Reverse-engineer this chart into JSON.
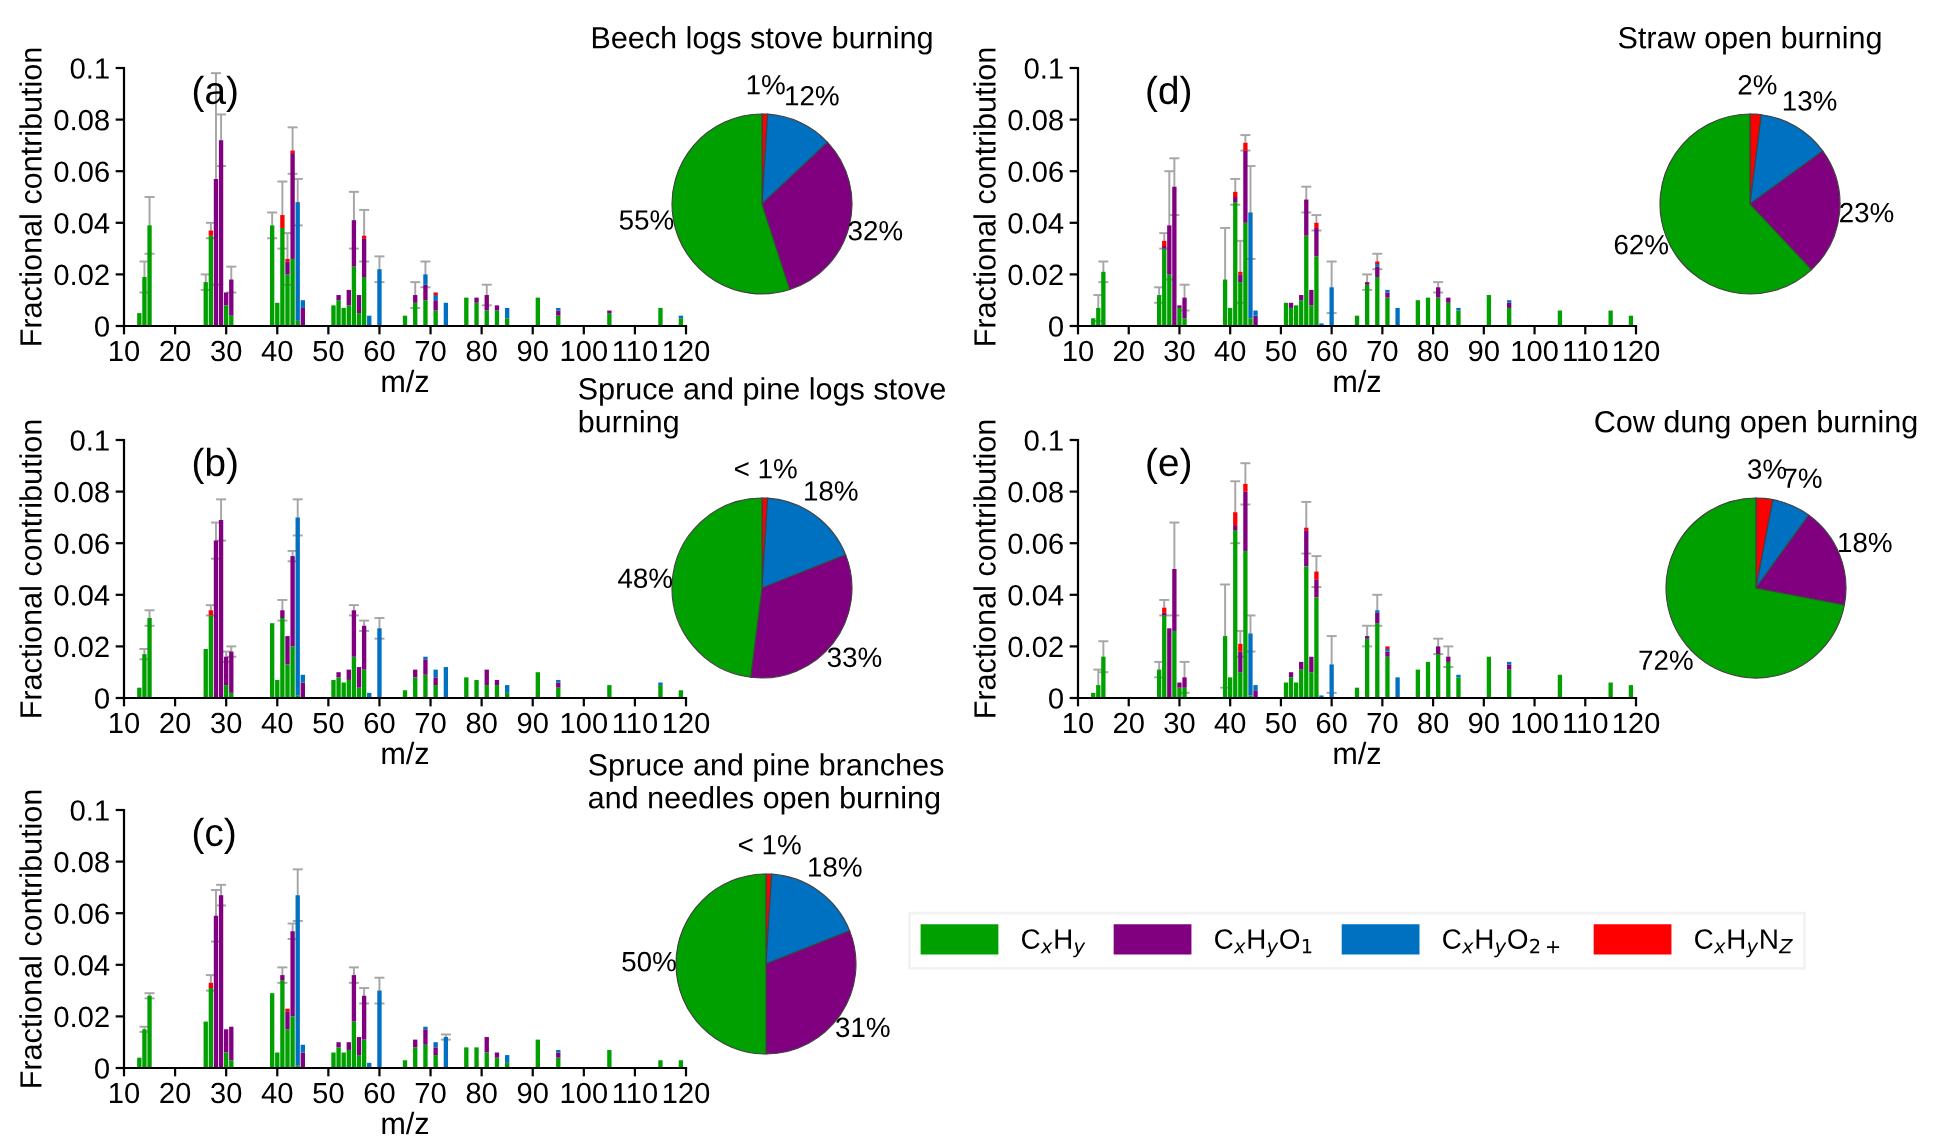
{
  "chart_data": [
    {
      "type": "bar",
      "stacked": true,
      "annotations": [
        "(a)"
      ],
      "xlabel": "m/z",
      "ylabel": "Fractional contribution",
      "xlim": [
        10,
        120
      ],
      "xticks": [
        10,
        20,
        30,
        40,
        50,
        60,
        70,
        80,
        90,
        100,
        110,
        120
      ],
      "ylim": [
        0,
        0.1
      ],
      "yticks": [
        0,
        0.02,
        0.04,
        0.06,
        0.08,
        0.1
      ],
      "x": [
        13,
        14,
        15,
        26,
        27,
        28,
        29,
        30,
        31,
        39,
        40,
        41,
        42,
        43,
        44,
        45,
        51,
        52,
        53,
        54,
        55,
        56,
        57,
        58,
        60,
        65,
        67,
        69,
        71,
        73,
        77,
        79,
        81,
        83,
        85,
        91,
        95,
        105,
        115,
        119
      ],
      "series": [
        {
          "color": "#00a000",
          "values": [
            0.005,
            0.019,
            0.039,
            0.017,
            0.035,
            0,
            0,
            0.008,
            0.004,
            0.039,
            0.009,
            0.038,
            0.02,
            0.026,
            0.002,
            0,
            0.008,
            0.01,
            0.007,
            0.008,
            0.023,
            0.005,
            0.019,
            0,
            0,
            0.004,
            0.009,
            0.01,
            0.006,
            0,
            0.011,
            0.009,
            0.006,
            0.006,
            0.003,
            0.011,
            0.004,
            0.005,
            0.007,
            0.003
          ]
        },
        {
          "color": "#800080",
          "values": [
            0,
            0,
            0,
            0,
            0,
            0.057,
            0.072,
            0.005,
            0.014,
            0,
            0,
            0,
            0.005,
            0.041,
            0,
            0.007,
            0,
            0.002,
            0,
            0.006,
            0.018,
            0.007,
            0.015,
            0,
            0,
            0,
            0.003,
            0.006,
            0.004,
            0,
            0,
            0.002,
            0.006,
            0.002,
            0,
            0,
            0.002,
            0.001,
            0,
            0
          ]
        },
        {
          "color": "#0070c0",
          "values": [
            0,
            0,
            0,
            0,
            0,
            0,
            0,
            0,
            0,
            0,
            0,
            0,
            0,
            0,
            0.046,
            0.003,
            0,
            0,
            0,
            0,
            0,
            0,
            0,
            0.004,
            0.022,
            0,
            0,
            0.004,
            0.002,
            0.009,
            0,
            0,
            0,
            0,
            0.004,
            0,
            0.001,
            0,
            0,
            0.001
          ]
        },
        {
          "color": "#ff0000",
          "values": [
            0,
            0,
            0,
            0,
            0.002,
            0,
            0,
            0,
            0,
            0,
            0,
            0.005,
            0.001,
            0.001,
            0,
            0,
            0,
            0,
            0,
            0,
            0,
            0,
            0.001,
            0,
            0,
            0,
            0,
            0,
            0.001,
            0,
            0,
            0,
            0,
            0,
            0,
            0,
            0,
            0,
            0,
            0
          ],
          "errors": [
            null,
            0.006,
            0.011,
            0.003,
            0.003,
            0.041,
            0.01,
            null,
            0.005,
            0.005,
            null,
            0.013,
            0.01,
            0.009,
            0.009,
            null,
            null,
            null,
            null,
            null,
            0.011,
            null,
            0.01,
            null,
            0.005,
            null,
            0.005,
            0.005,
            null,
            null,
            null,
            null,
            0.004,
            null,
            null,
            null,
            null,
            null,
            null,
            null
          ]
        }
      ]
    },
    {
      "type": "pie",
      "title": "Beech logs stove burning",
      "categories": [
        null,
        null,
        null,
        null
      ],
      "values": [
        1,
        12,
        32,
        55
      ],
      "colors": [
        "#ff0000",
        "#0070c0",
        "#800080",
        "#00a000"
      ],
      "value_labels": [
        "1%",
        "12%",
        "32%",
        "55%"
      ]
    },
    {
      "type": "bar",
      "stacked": true,
      "annotations": [
        "(d)"
      ],
      "xlabel": "m/z",
      "ylabel": "Fractional contribution",
      "xlim": [
        10,
        120
      ],
      "xticks": [
        10,
        20,
        30,
        40,
        50,
        60,
        70,
        80,
        90,
        100,
        110,
        120
      ],
      "ylim": [
        0,
        0.1
      ],
      "yticks": [
        0,
        0.02,
        0.04,
        0.06,
        0.08,
        0.1
      ],
      "x": [
        13,
        14,
        15,
        26,
        27,
        28,
        29,
        30,
        31,
        39,
        40,
        41,
        42,
        43,
        44,
        45,
        51,
        52,
        53,
        54,
        55,
        56,
        57,
        58,
        60,
        65,
        67,
        69,
        71,
        73,
        77,
        79,
        81,
        83,
        85,
        91,
        95,
        105,
        115,
        119
      ],
      "series": [
        {
          "color": "#00a000",
          "values": [
            0.003,
            0.007,
            0.021,
            0.012,
            0.03,
            0.02,
            0,
            0.007,
            0.003,
            0.018,
            0.007,
            0.048,
            0.017,
            0.04,
            0.003,
            0,
            0.009,
            0.007,
            0.008,
            0.01,
            0.035,
            0.008,
            0.027,
            0,
            0,
            0.004,
            0.016,
            0.019,
            0.011,
            0,
            0.01,
            0.011,
            0.011,
            0.009,
            0.006,
            0.012,
            0.007,
            0.006,
            0.006,
            0.004
          ]
        },
        {
          "color": "#800080",
          "values": [
            0,
            0,
            0,
            0,
            0.001,
            0.019,
            0.054,
            0.001,
            0.008,
            0,
            0,
            0.002,
            0.003,
            0.028,
            0,
            0.004,
            0,
            0.002,
            0,
            0.002,
            0.014,
            0.006,
            0.011,
            0,
            0,
            0,
            0.001,
            0.004,
            0.002,
            0,
            0,
            0,
            0.004,
            0.002,
            0,
            0,
            0.002,
            0,
            0,
            0
          ]
        },
        {
          "color": "#0070c0",
          "values": [
            0,
            0,
            0,
            0,
            0,
            0,
            0,
            0,
            0,
            0,
            0,
            0,
            0,
            0,
            0.041,
            0.002,
            0,
            0,
            0,
            0,
            0,
            0,
            0,
            0.001,
            0.015,
            0,
            0,
            0.001,
            0.001,
            0.007,
            0,
            0,
            0,
            0,
            0.001,
            0,
            0.001,
            0,
            0,
            0
          ]
        },
        {
          "color": "#ff0000",
          "values": [
            0,
            0,
            0,
            0,
            0.002,
            0,
            0,
            0,
            0,
            0,
            0,
            0.002,
            0.001,
            0.003,
            0,
            0,
            0,
            0,
            0,
            0,
            0,
            0,
            0.002,
            0,
            0,
            0,
            0,
            0.001,
            0,
            0,
            0,
            0,
            0,
            0,
            0,
            0,
            0,
            0,
            0,
            0
          ],
          "errors": [
            null,
            0.005,
            0.004,
            0.003,
            0.003,
            0.021,
            0.011,
            null,
            0.005,
            0.02,
            null,
            0.005,
            0.012,
            0.003,
            0.018,
            null,
            null,
            null,
            null,
            null,
            0.005,
            null,
            0.003,
            null,
            0.01,
            null,
            0.003,
            0.003,
            null,
            null,
            null,
            null,
            0.002,
            null,
            null,
            null,
            null,
            null,
            null,
            null
          ]
        }
      ]
    },
    {
      "type": "pie",
      "title": "Straw open burning",
      "categories": [
        null,
        null,
        null,
        null
      ],
      "values": [
        2,
        13,
        23,
        62
      ],
      "colors": [
        "#ff0000",
        "#0070c0",
        "#800080",
        "#00a000"
      ],
      "value_labels": [
        "2%",
        "13%",
        "23%",
        "62%"
      ]
    },
    {
      "type": "bar",
      "stacked": true,
      "annotations": [
        "(b)"
      ],
      "xlabel": "m/z",
      "ylabel": "Fractional contribution",
      "xlim": [
        10,
        120
      ],
      "xticks": [
        10,
        20,
        30,
        40,
        50,
        60,
        70,
        80,
        90,
        100,
        110,
        120
      ],
      "ylim": [
        0,
        0.1
      ],
      "yticks": [
        0,
        0.02,
        0.04,
        0.06,
        0.08,
        0.1
      ],
      "x": [
        13,
        14,
        15,
        26,
        27,
        28,
        29,
        30,
        31,
        39,
        40,
        41,
        42,
        43,
        44,
        45,
        51,
        52,
        53,
        54,
        55,
        56,
        57,
        58,
        60,
        65,
        67,
        69,
        71,
        73,
        77,
        79,
        81,
        83,
        85,
        91,
        95,
        105,
        115,
        119
      ],
      "series": [
        {
          "color": "#00a000",
          "values": [
            0.004,
            0.017,
            0.031,
            0.019,
            0.032,
            0,
            0,
            0.005,
            0.002,
            0.029,
            0.007,
            0.031,
            0.013,
            0.02,
            0.001,
            0,
            0.007,
            0.008,
            0.006,
            0.007,
            0.016,
            0.004,
            0.011,
            0,
            0,
            0.003,
            0.008,
            0.009,
            0.005,
            0,
            0.008,
            0.007,
            0.005,
            0.005,
            0.002,
            0.01,
            0.004,
            0.005,
            0.005,
            0.003
          ]
        },
        {
          "color": "#800080",
          "values": [
            0,
            0,
            0,
            0,
            0,
            0.061,
            0.069,
            0.011,
            0.016,
            0,
            0,
            0.003,
            0.011,
            0.035,
            0,
            0.006,
            0,
            0.002,
            0,
            0.004,
            0.018,
            0.008,
            0.017,
            0,
            0,
            0,
            0.003,
            0.006,
            0.003,
            0,
            0,
            0,
            0.006,
            0.002,
            0,
            0,
            0.002,
            0,
            0,
            0
          ]
        },
        {
          "color": "#0070c0",
          "values": [
            0,
            0,
            0,
            0,
            0,
            0,
            0,
            0,
            0,
            0,
            0,
            0,
            0,
            0,
            0.069,
            0.003,
            0,
            0,
            0,
            0,
            0,
            0,
            0,
            0.002,
            0.027,
            0,
            0,
            0.001,
            0.003,
            0.012,
            0,
            0,
            0,
            0,
            0.003,
            0,
            0.001,
            0,
            0.001,
            0
          ]
        },
        {
          "color": "#ff0000",
          "values": [
            0,
            0,
            0,
            0,
            0.002,
            0,
            0,
            0,
            0,
            0,
            0,
            0,
            0,
            0,
            0,
            0,
            0,
            0,
            0,
            0,
            0,
            0,
            0,
            0,
            0,
            0,
            0,
            0,
            0,
            0,
            0,
            0,
            0,
            0,
            0,
            0,
            0,
            0,
            0,
            0
          ],
          "errors": [
            null,
            0.002,
            0.003,
            null,
            0.002,
            0.007,
            0.008,
            0.002,
            0.002,
            null,
            null,
            0.004,
            null,
            0.002,
            0.007,
            null,
            null,
            null,
            null,
            null,
            0.002,
            null,
            0.002,
            null,
            0.004,
            null,
            null,
            null,
            null,
            null,
            null,
            null,
            null,
            null,
            null,
            null,
            null,
            null,
            null,
            null
          ]
        }
      ]
    },
    {
      "type": "pie",
      "title": "Spruce and pine logs stove\nburning",
      "categories": [
        null,
        null,
        null,
        null
      ],
      "values": [
        1,
        18,
        33,
        48
      ],
      "colors": [
        "#ff0000",
        "#0070c0",
        "#800080",
        "#00a000"
      ],
      "value_labels": [
        "< 1%",
        "18%",
        "33%",
        "48%"
      ]
    },
    {
      "type": "bar",
      "stacked": true,
      "annotations": [
        "(e)"
      ],
      "xlabel": "m/z",
      "ylabel": "Fractional contribution",
      "xlim": [
        10,
        120
      ],
      "xticks": [
        10,
        20,
        30,
        40,
        50,
        60,
        70,
        80,
        90,
        100,
        110,
        120
      ],
      "ylim": [
        0,
        0.1
      ],
      "yticks": [
        0,
        0.02,
        0.04,
        0.06,
        0.08,
        0.1
      ],
      "legend": "bottom",
      "x": [
        13,
        14,
        15,
        26,
        27,
        28,
        29,
        30,
        31,
        39,
        40,
        41,
        42,
        43,
        44,
        45,
        51,
        52,
        53,
        54,
        55,
        56,
        57,
        58,
        60,
        65,
        67,
        69,
        71,
        73,
        77,
        79,
        81,
        83,
        85,
        91,
        95,
        105,
        115,
        119
      ],
      "series": [
        {
          "name": "C$_{x}$H$_{y}$",
          "color": "#00a000",
          "values": [
            0.002,
            0.005,
            0.016,
            0.011,
            0.032,
            0,
            0.026,
            0.004,
            0.004,
            0.024,
            0.008,
            0.065,
            0.01,
            0.057,
            0.001,
            0,
            0.006,
            0.008,
            0.006,
            0.011,
            0.051,
            0.01,
            0.039,
            0,
            0,
            0.004,
            0.023,
            0.029,
            0.016,
            0,
            0.011,
            0.014,
            0.017,
            0.014,
            0.008,
            0.016,
            0.011,
            0.009,
            0.006,
            0.005
          ]
        },
        {
          "name": "C$_{x}$H$_{y}$O$_{1}$",
          "color": "#800080",
          "values": [
            0,
            0,
            0,
            0,
            0.001,
            0.027,
            0.024,
            0.002,
            0.004,
            0,
            0,
            0.002,
            0.008,
            0.023,
            0,
            0.003,
            0,
            0.002,
            0,
            0.003,
            0.014,
            0.006,
            0.007,
            0,
            0,
            0,
            0.001,
            0.004,
            0.002,
            0,
            0,
            0,
            0.003,
            0.002,
            0,
            0,
            0.002,
            0,
            0,
            0
          ]
        },
        {
          "name": "C$_{x}$H$_{y}$O$_{2+}$",
          "color": "#0070c0",
          "values": [
            0,
            0,
            0,
            0,
            0,
            0,
            0,
            0,
            0,
            0,
            0,
            0,
            0,
            0,
            0.024,
            0.002,
            0,
            0,
            0,
            0,
            0,
            0,
            0,
            0.001,
            0.013,
            0,
            0,
            0.001,
            0.001,
            0.008,
            0,
            0,
            0,
            0,
            0.001,
            0,
            0.001,
            0,
            0,
            0
          ]
        },
        {
          "name": "C$_{x}$H$_{y}$N$_{Z}$",
          "color": "#ff0000",
          "values": [
            0,
            0,
            0,
            0,
            0.002,
            0,
            0,
            0,
            0,
            0,
            0,
            0.005,
            0.003,
            0.003,
            0,
            0,
            0,
            0,
            0,
            0,
            0.001,
            0,
            0.003,
            0,
            0,
            0,
            0,
            0,
            0.001,
            0,
            0,
            0,
            0,
            0,
            0,
            0,
            0,
            0,
            0,
            0
          ],
          "errors": [
            null,
            0.006,
            0.006,
            0.003,
            0.003,
            null,
            0.018,
            null,
            0.006,
            0.02,
            null,
            0.012,
            0.005,
            0.008,
            0.007,
            null,
            null,
            null,
            null,
            null,
            0.01,
            null,
            0.006,
            null,
            0.011,
            null,
            0.004,
            0.006,
            null,
            null,
            null,
            null,
            0.003,
            0.004,
            null,
            null,
            null,
            null,
            null,
            null
          ]
        }
      ]
    },
    {
      "type": "pie",
      "title": "Cow dung open burning",
      "categories": [
        null,
        null,
        null,
        null
      ],
      "values": [
        3,
        7,
        18,
        72
      ],
      "colors": [
        "#ff0000",
        "#0070c0",
        "#800080",
        "#00a000"
      ],
      "value_labels": [
        "3%",
        "7%",
        "18%",
        "72%"
      ]
    },
    {
      "type": "bar",
      "stacked": true,
      "annotations": [
        "(c)"
      ],
      "xlabel": "m/z",
      "ylabel": "Fractional contribution",
      "xlim": [
        10,
        120
      ],
      "xticks": [
        10,
        20,
        30,
        40,
        50,
        60,
        70,
        80,
        90,
        100,
        110,
        120
      ],
      "ylim": [
        0,
        0.1
      ],
      "yticks": [
        0,
        0.02,
        0.04,
        0.06,
        0.08,
        0.1
      ],
      "x": [
        13,
        14,
        15,
        26,
        27,
        28,
        29,
        30,
        31,
        39,
        40,
        41,
        42,
        43,
        44,
        45,
        51,
        52,
        53,
        54,
        55,
        56,
        57,
        58,
        60,
        65,
        67,
        69,
        71,
        73,
        77,
        79,
        81,
        83,
        85,
        91,
        95,
        105,
        115,
        119
      ],
      "series": [
        {
          "color": "#00a000",
          "values": [
            0.004,
            0.015,
            0.028,
            0.018,
            0.031,
            0,
            0,
            0.006,
            0.003,
            0.029,
            0.006,
            0.034,
            0.015,
            0.02,
            0.001,
            0,
            0.006,
            0.008,
            0.006,
            0.007,
            0.018,
            0.005,
            0.011,
            0,
            0,
            0.003,
            0.008,
            0.009,
            0.005,
            0,
            0.008,
            0.008,
            0.006,
            0.004,
            0.002,
            0.011,
            0.004,
            0.007,
            0.003,
            0.003
          ]
        },
        {
          "color": "#800080",
          "values": [
            0,
            0,
            0,
            0,
            0,
            0.059,
            0.067,
            0.009,
            0.013,
            0,
            0,
            0.002,
            0.007,
            0.033,
            0,
            0.006,
            0,
            0.002,
            0,
            0.003,
            0.018,
            0.007,
            0.017,
            0,
            0,
            0,
            0.003,
            0.006,
            0.003,
            0,
            0,
            0,
            0.006,
            0.002,
            0,
            0,
            0.002,
            0,
            0,
            0
          ]
        },
        {
          "color": "#0070c0",
          "values": [
            0,
            0,
            0,
            0,
            0,
            0,
            0,
            0,
            0,
            0,
            0,
            0,
            0,
            0,
            0.066,
            0.003,
            0,
            0,
            0,
            0,
            0,
            0,
            0,
            0.002,
            0.03,
            0,
            0,
            0.001,
            0.002,
            0.012,
            0,
            0,
            0,
            0,
            0.003,
            0,
            0.001,
            0,
            0,
            0
          ]
        },
        {
          "color": "#ff0000",
          "values": [
            0,
            0,
            0,
            0,
            0.002,
            0,
            0,
            0,
            0,
            0,
            0,
            0,
            0.001,
            0,
            0,
            0,
            0,
            0,
            0,
            0,
            0,
            0,
            0,
            0,
            0,
            0,
            0,
            0,
            0,
            0,
            0,
            0,
            0,
            0,
            0,
            0,
            0,
            0,
            0,
            0
          ],
          "errors": [
            null,
            0.001,
            0.001,
            null,
            0.003,
            0.01,
            0.004,
            null,
            null,
            null,
            null,
            0.003,
            null,
            0.003,
            0.01,
            null,
            null,
            null,
            null,
            null,
            0.003,
            null,
            0.003,
            null,
            0.005,
            null,
            null,
            null,
            null,
            0.001,
            null,
            null,
            null,
            null,
            null,
            null,
            null,
            null,
            null,
            null
          ]
        }
      ]
    },
    {
      "type": "pie",
      "title": "Spruce and pine branches\nand needles open burning",
      "categories": [
        null,
        null,
        null,
        null
      ],
      "values": [
        1,
        18,
        31,
        50
      ],
      "colors": [
        "#ff0000",
        "#0070c0",
        "#800080",
        "#00a000"
      ],
      "value_labels": [
        "< 1%",
        "18%",
        "31%",
        "50%"
      ]
    }
  ]
}
